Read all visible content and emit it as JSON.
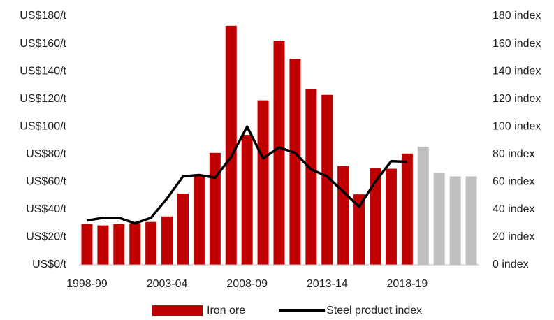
{
  "chart_data": {
    "type": "bar",
    "categories": [
      "1998-99",
      null,
      null,
      null,
      null,
      "2003-04",
      null,
      null,
      null,
      null,
      "2008-09",
      null,
      null,
      null,
      null,
      "2013-14",
      null,
      null,
      null,
      null,
      "2018-19",
      null,
      null,
      null,
      null
    ],
    "series": [
      {
        "name": "Iron ore",
        "type": "bar",
        "color": "#c00000",
        "colors": [
          "#c00000",
          "#c00000",
          "#c00000",
          "#c00000",
          "#c00000",
          "#c00000",
          "#c00000",
          "#c00000",
          "#c00000",
          "#c00000",
          "#c00000",
          "#c00000",
          "#c00000",
          "#c00000",
          "#c00000",
          "#c00000",
          "#c00000",
          "#c00000",
          "#c00000",
          "#c00000",
          "#c00000",
          "#bfbfbf",
          "#bfbfbf",
          "#bfbfbf",
          "#bfbfbf"
        ],
        "values": [
          29.5,
          28.5,
          29.5,
          30,
          31,
          35,
          51.5,
          65,
          81,
          173,
          94,
          119,
          162,
          149,
          127,
          123,
          71.5,
          51,
          70,
          69.5,
          80.5,
          85.5,
          66.5,
          64,
          64
        ]
      },
      {
        "name": "Steel product index",
        "type": "line",
        "axis": "y2",
        "color": "#000000",
        "values": [
          32,
          34,
          34,
          30,
          34,
          48,
          64,
          65,
          63,
          78,
          100,
          77,
          85,
          81,
          69,
          64,
          53,
          42,
          60,
          75,
          74.5,
          null,
          null,
          null,
          null
        ]
      }
    ],
    "ylim": [
      0,
      180
    ],
    "yticks": [
      {
        "value": 0,
        "label": "US$0/t"
      },
      {
        "value": 20,
        "label": "US$20/t"
      },
      {
        "value": 40,
        "label": "US$40/t"
      },
      {
        "value": 60,
        "label": "US$60/t"
      },
      {
        "value": 80,
        "label": "US$80/t"
      },
      {
        "value": 100,
        "label": "US$100/t"
      },
      {
        "value": 120,
        "label": "US$120/t"
      },
      {
        "value": 140,
        "label": "US$140/t"
      },
      {
        "value": 160,
        "label": "US$160/t"
      },
      {
        "value": 180,
        "label": "US$180/t"
      }
    ],
    "y2lim": [
      0,
      180
    ],
    "y2ticks": [
      {
        "value": 0,
        "label": "0 index"
      },
      {
        "value": 20,
        "label": "20 index"
      },
      {
        "value": 40,
        "label": "40 index"
      },
      {
        "value": 60,
        "label": "60 index"
      },
      {
        "value": 80,
        "label": "80 index"
      },
      {
        "value": 100,
        "label": "100 index"
      },
      {
        "value": 120,
        "label": "120 index"
      },
      {
        "value": 140,
        "label": "140 index"
      },
      {
        "value": 160,
        "label": "160 index"
      },
      {
        "value": 180,
        "label": "180 index"
      }
    ],
    "legend": "bottom"
  }
}
